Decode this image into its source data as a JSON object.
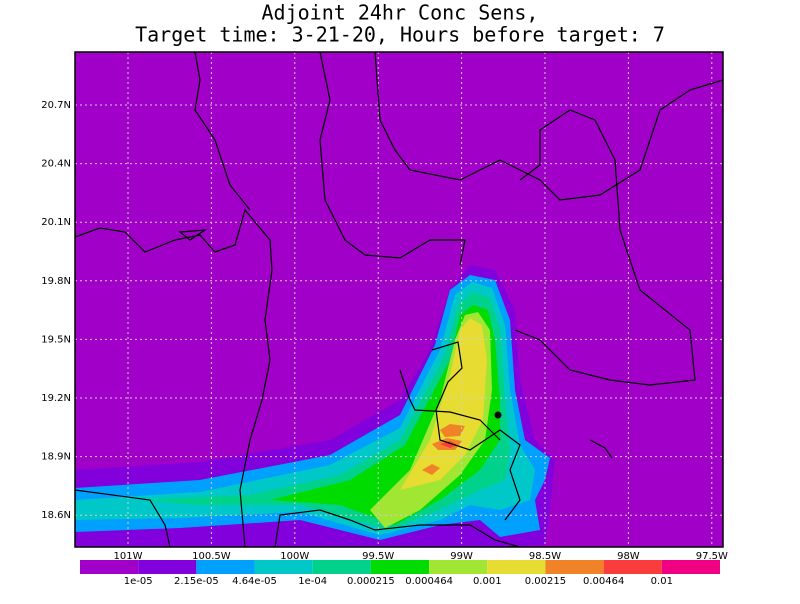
{
  "title": {
    "line1": "Adjoint 24hr Conc Sens,",
    "line2": "Target time: 3-21-20, Hours before target: 7"
  },
  "lat_labels": [
    "20.7N",
    "20.4N",
    "20.1N",
    "19.8N",
    "19.5N",
    "19.2N",
    "18.9N",
    "18.6N"
  ],
  "lon_labels": [
    "101W",
    "100.5W",
    "100W",
    "99.5W",
    "99W",
    "98.5W",
    "98W",
    "97.5W"
  ],
  "colorbar": {
    "colors": [
      "#a000c8",
      "#8200dc",
      "#00a0ff",
      "#00c8c8",
      "#00d28c",
      "#00dc00",
      "#a0e632",
      "#e6dc32",
      "#f08228",
      "#fa3c3c",
      "#f00082"
    ],
    "labels": [
      "1e-05",
      "2.15e-05",
      "4.64e-05",
      "1e-04",
      "0.000215",
      "0.000464",
      "0.001",
      "0.00215",
      "0.00464",
      "0.01"
    ]
  }
}
